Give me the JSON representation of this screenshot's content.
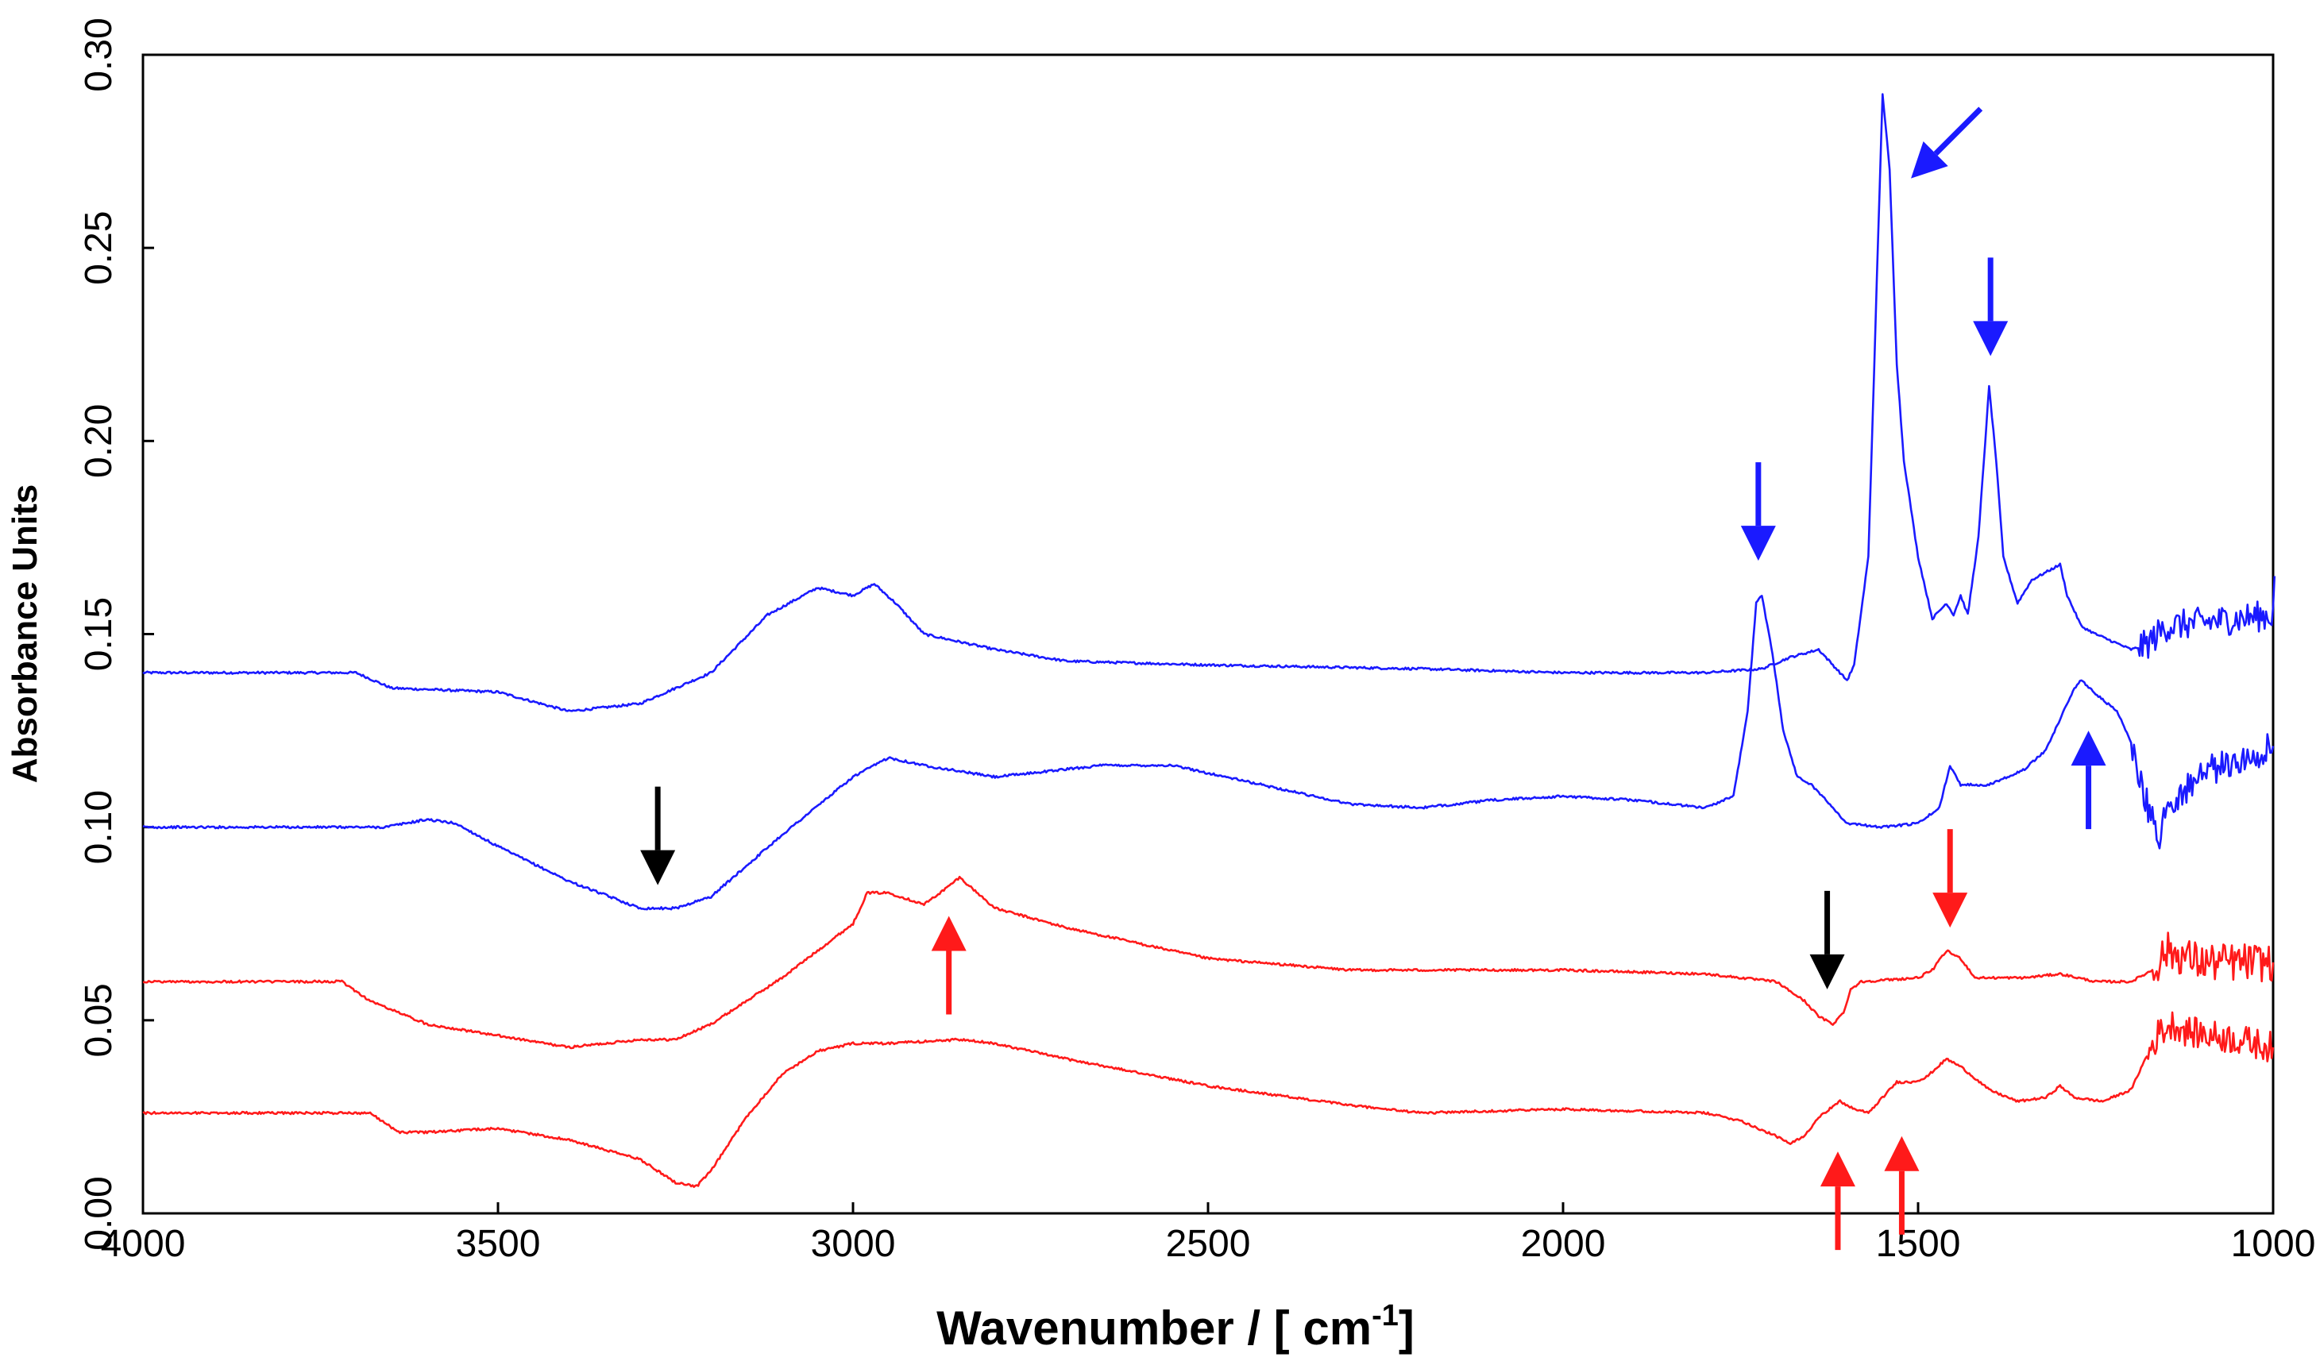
{
  "chart_data": {
    "type": "line",
    "title": "",
    "xlabel": "Wavenumber / [ cm",
    "xlabel_superscript": "-1",
    "xlabel_suffix": "]",
    "ylabel": "Absorbance Units",
    "xlim": [
      4000,
      1000
    ],
    "ylim": [
      0,
      0.3
    ],
    "x_ticks": [
      4000,
      3500,
      3000,
      2500,
      2000,
      1500,
      1000
    ],
    "x_tick_labels": [
      "4000",
      "3500",
      "3000",
      "2500",
      "2000",
      "1500",
      "1000"
    ],
    "y_ticks": [
      0,
      0.05,
      0.1,
      0.15,
      0.2,
      0.25,
      0.3
    ],
    "y_tick_labels": [
      "0.00",
      "0.05",
      "0.10",
      "0.15",
      "0.20",
      "0.25",
      "0.30"
    ],
    "grid": false,
    "colors": {
      "blue": "#1a1aff",
      "red": "#ff1a1a",
      "black": "#000000"
    },
    "series": [
      {
        "name": "blue-upper",
        "color": "#1a1aff",
        "noise_below_x": 1190,
        "noise_amp": 0.004,
        "points": [
          [
            4000,
            0.14
          ],
          [
            3700,
            0.14
          ],
          [
            3650,
            0.136
          ],
          [
            3500,
            0.135
          ],
          [
            3400,
            0.13
          ],
          [
            3300,
            0.132
          ],
          [
            3200,
            0.14
          ],
          [
            3120,
            0.155
          ],
          [
            3050,
            0.162
          ],
          [
            3000,
            0.16
          ],
          [
            2970,
            0.163
          ],
          [
            2940,
            0.158
          ],
          [
            2900,
            0.15
          ],
          [
            2800,
            0.146
          ],
          [
            2700,
            0.143
          ],
          [
            2500,
            0.142
          ],
          [
            2200,
            0.141
          ],
          [
            2000,
            0.14
          ],
          [
            1800,
            0.14
          ],
          [
            1720,
            0.141
          ],
          [
            1680,
            0.144
          ],
          [
            1660,
            0.145
          ],
          [
            1640,
            0.146
          ],
          [
            1620,
            0.142
          ],
          [
            1600,
            0.138
          ],
          [
            1590,
            0.142
          ],
          [
            1570,
            0.17
          ],
          [
            1560,
            0.23
          ],
          [
            1550,
            0.29
          ],
          [
            1540,
            0.27
          ],
          [
            1530,
            0.22
          ],
          [
            1520,
            0.195
          ],
          [
            1500,
            0.17
          ],
          [
            1480,
            0.154
          ],
          [
            1460,
            0.158
          ],
          [
            1450,
            0.155
          ],
          [
            1440,
            0.16
          ],
          [
            1430,
            0.155
          ],
          [
            1415,
            0.175
          ],
          [
            1400,
            0.214
          ],
          [
            1390,
            0.195
          ],
          [
            1380,
            0.17
          ],
          [
            1360,
            0.158
          ],
          [
            1340,
            0.164
          ],
          [
            1320,
            0.166
          ],
          [
            1300,
            0.168
          ],
          [
            1290,
            0.16
          ],
          [
            1270,
            0.152
          ],
          [
            1250,
            0.15
          ],
          [
            1200,
            0.146
          ],
          [
            1180,
            0.147
          ],
          [
            1150,
            0.152
          ],
          [
            1100,
            0.153
          ],
          [
            1050,
            0.154
          ],
          [
            1000,
            0.155
          ],
          [
            998,
            0.165
          ]
        ]
      },
      {
        "name": "blue-lower",
        "color": "#1a1aff",
        "noise_below_x": 1200,
        "noise_amp": 0.004,
        "points": [
          [
            4000,
            0.1
          ],
          [
            3660,
            0.1
          ],
          [
            3600,
            0.102
          ],
          [
            3560,
            0.101
          ],
          [
            3500,
            0.095
          ],
          [
            3400,
            0.086
          ],
          [
            3300,
            0.079
          ],
          [
            3250,
            0.079
          ],
          [
            3200,
            0.082
          ],
          [
            3100,
            0.098
          ],
          [
            3000,
            0.113
          ],
          [
            2950,
            0.118
          ],
          [
            2900,
            0.116
          ],
          [
            2800,
            0.113
          ],
          [
            2650,
            0.116
          ],
          [
            2550,
            0.116
          ],
          [
            2400,
            0.11
          ],
          [
            2300,
            0.106
          ],
          [
            2200,
            0.105
          ],
          [
            2100,
            0.107
          ],
          [
            2000,
            0.108
          ],
          [
            1900,
            0.107
          ],
          [
            1800,
            0.105
          ],
          [
            1760,
            0.108
          ],
          [
            1740,
            0.13
          ],
          [
            1728,
            0.158
          ],
          [
            1720,
            0.16
          ],
          [
            1705,
            0.145
          ],
          [
            1690,
            0.125
          ],
          [
            1670,
            0.113
          ],
          [
            1650,
            0.111
          ],
          [
            1630,
            0.107
          ],
          [
            1600,
            0.101
          ],
          [
            1550,
            0.1
          ],
          [
            1500,
            0.101
          ],
          [
            1470,
            0.105
          ],
          [
            1455,
            0.116
          ],
          [
            1440,
            0.111
          ],
          [
            1400,
            0.111
          ],
          [
            1350,
            0.115
          ],
          [
            1320,
            0.12
          ],
          [
            1300,
            0.128
          ],
          [
            1280,
            0.136
          ],
          [
            1270,
            0.138
          ],
          [
            1240,
            0.133
          ],
          [
            1220,
            0.13
          ],
          [
            1200,
            0.122
          ],
          [
            1180,
            0.107
          ],
          [
            1160,
            0.098
          ],
          [
            1150,
            0.105
          ],
          [
            1100,
            0.114
          ],
          [
            1050,
            0.117
          ],
          [
            1000,
            0.121
          ]
        ]
      },
      {
        "name": "red-upper",
        "color": "#ff1a1a",
        "noise_below_x": 1170,
        "noise_amp": 0.005,
        "points": [
          [
            4000,
            0.06
          ],
          [
            3720,
            0.06
          ],
          [
            3680,
            0.055
          ],
          [
            3600,
            0.049
          ],
          [
            3500,
            0.046
          ],
          [
            3400,
            0.043
          ],
          [
            3300,
            0.045
          ],
          [
            3250,
            0.045
          ],
          [
            3200,
            0.049
          ],
          [
            3100,
            0.061
          ],
          [
            3050,
            0.068
          ],
          [
            3000,
            0.075
          ],
          [
            2980,
            0.083
          ],
          [
            2950,
            0.083
          ],
          [
            2900,
            0.08
          ],
          [
            2870,
            0.084
          ],
          [
            2850,
            0.087
          ],
          [
            2800,
            0.079
          ],
          [
            2700,
            0.074
          ],
          [
            2500,
            0.066
          ],
          [
            2300,
            0.063
          ],
          [
            2000,
            0.063
          ],
          [
            1800,
            0.062
          ],
          [
            1700,
            0.06
          ],
          [
            1660,
            0.055
          ],
          [
            1640,
            0.051
          ],
          [
            1620,
            0.049
          ],
          [
            1605,
            0.052
          ],
          [
            1595,
            0.058
          ],
          [
            1580,
            0.06
          ],
          [
            1500,
            0.061
          ],
          [
            1480,
            0.063
          ],
          [
            1460,
            0.068
          ],
          [
            1440,
            0.066
          ],
          [
            1420,
            0.061
          ],
          [
            1350,
            0.061
          ],
          [
            1300,
            0.062
          ],
          [
            1250,
            0.06
          ],
          [
            1200,
            0.06
          ],
          [
            1170,
            0.063
          ],
          [
            1150,
            0.068
          ],
          [
            1100,
            0.065
          ],
          [
            1000,
            0.065
          ]
        ]
      },
      {
        "name": "red-lower",
        "color": "#ff1a1a",
        "noise_below_x": 1180,
        "noise_amp": 0.004,
        "points": [
          [
            4000,
            0.026
          ],
          [
            3680,
            0.026
          ],
          [
            3640,
            0.021
          ],
          [
            3600,
            0.021
          ],
          [
            3500,
            0.022
          ],
          [
            3400,
            0.019
          ],
          [
            3300,
            0.014
          ],
          [
            3250,
            0.008
          ],
          [
            3220,
            0.007
          ],
          [
            3200,
            0.011
          ],
          [
            3150,
            0.025
          ],
          [
            3100,
            0.036
          ],
          [
            3050,
            0.042
          ],
          [
            3000,
            0.044
          ],
          [
            2950,
            0.044
          ],
          [
            2850,
            0.045
          ],
          [
            2800,
            0.044
          ],
          [
            2700,
            0.04
          ],
          [
            2500,
            0.033
          ],
          [
            2300,
            0.028
          ],
          [
            2200,
            0.026
          ],
          [
            2000,
            0.027
          ],
          [
            1800,
            0.026
          ],
          [
            1750,
            0.024
          ],
          [
            1700,
            0.02
          ],
          [
            1680,
            0.018
          ],
          [
            1660,
            0.02
          ],
          [
            1640,
            0.025
          ],
          [
            1610,
            0.029
          ],
          [
            1590,
            0.027
          ],
          [
            1570,
            0.026
          ],
          [
            1530,
            0.034
          ],
          [
            1510,
            0.034
          ],
          [
            1490,
            0.035
          ],
          [
            1460,
            0.04
          ],
          [
            1440,
            0.038
          ],
          [
            1400,
            0.032
          ],
          [
            1360,
            0.029
          ],
          [
            1320,
            0.03
          ],
          [
            1300,
            0.033
          ],
          [
            1280,
            0.03
          ],
          [
            1240,
            0.029
          ],
          [
            1200,
            0.032
          ],
          [
            1180,
            0.04
          ],
          [
            1160,
            0.047
          ],
          [
            1140,
            0.049
          ],
          [
            1120,
            0.047
          ],
          [
            1050,
            0.045
          ],
          [
            1000,
            0.043
          ]
        ]
      }
    ],
    "annotations": [
      {
        "type": "arrow",
        "color": "#1a1aff",
        "x": 1510,
        "y": 0.268,
        "direction": "down-left"
      },
      {
        "type": "arrow",
        "color": "#1a1aff",
        "x": 1398,
        "y": 0.222,
        "direction": "down"
      },
      {
        "type": "arrow",
        "color": "#1a1aff",
        "x": 1725,
        "y": 0.169,
        "direction": "down"
      },
      {
        "type": "arrow",
        "color": "#1a1aff",
        "x": 1260,
        "y": 0.125,
        "direction": "up"
      },
      {
        "type": "arrow",
        "color": "#000000",
        "x": 3275,
        "y": 0.085,
        "direction": "down"
      },
      {
        "type": "arrow",
        "color": "#000000",
        "x": 1628,
        "y": 0.058,
        "direction": "down"
      },
      {
        "type": "arrow",
        "color": "#ff1a1a",
        "x": 2865,
        "y": 0.077,
        "direction": "up"
      },
      {
        "type": "arrow",
        "color": "#ff1a1a",
        "x": 1455,
        "y": 0.074,
        "direction": "down"
      },
      {
        "type": "arrow",
        "color": "#ff1a1a",
        "x": 1613,
        "y": 0.016,
        "direction": "up"
      },
      {
        "type": "arrow",
        "color": "#ff1a1a",
        "x": 1523,
        "y": 0.02,
        "direction": "up"
      }
    ]
  }
}
